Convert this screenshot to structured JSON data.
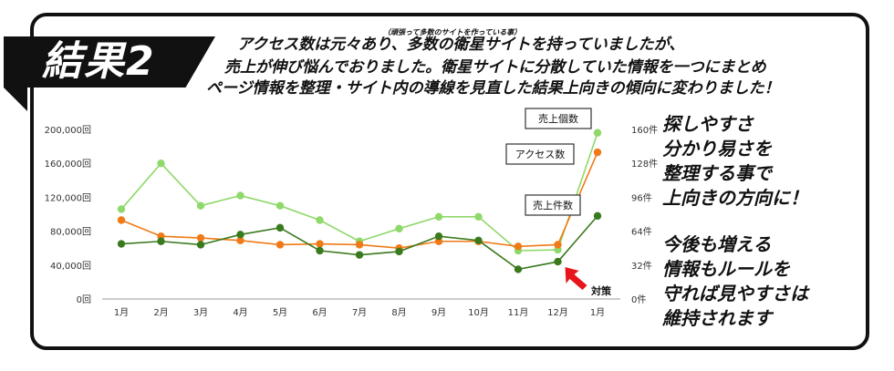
{
  "header": {
    "badge": "結果2",
    "note": "（頑張って多数のサイトを作っている事）",
    "line1": "アクセス数は元々あり、多数の衛星サイトを持っていましたが、",
    "line2": "売上が伸び悩んでおりました。衛星サイトに分散していた情報を一つにまとめ",
    "line3": "ページ情報を整理・サイト内の導線を見直した結果上向きの傾向に変わりました！"
  },
  "side_text": {
    "block1": [
      "探しやすさ",
      "分かり易さを",
      "整理する事で",
      "上向きの方向に！"
    ],
    "block2": [
      "今後も増える",
      "情報もルールを",
      "守れば見やすさは",
      "維持されます"
    ]
  },
  "chart_data": {
    "type": "line",
    "categories": [
      "1月",
      "2月",
      "3月",
      "4月",
      "5月",
      "6月",
      "7月",
      "8月",
      "9月",
      "10月",
      "11月",
      "12月",
      "1月"
    ],
    "left_ticks": [
      "200,000回",
      "160,000回",
      "120,000回",
      "80,000回",
      "40,000回",
      "0回"
    ],
    "right_ticks": [
      "160件",
      "128件",
      "96件",
      "64件",
      "32件",
      "0件"
    ],
    "ylim_left": [
      0,
      200000
    ],
    "ylim_right": [
      0,
      160
    ],
    "series": [
      {
        "name": "売上個数",
        "axis": "left",
        "color": "#8fd86a",
        "values": [
          106000,
          160000,
          110000,
          122000,
          110000,
          93000,
          68000,
          83000,
          97000,
          97000,
          57000,
          58000,
          196000
        ]
      },
      {
        "name": "アクセス数",
        "axis": "left",
        "color": "#f07a18",
        "values": [
          93000,
          74000,
          72000,
          69000,
          64000,
          65000,
          64000,
          60000,
          68000,
          68000,
          62000,
          64000,
          173000
        ]
      },
      {
        "name": "売上件数",
        "axis": "left",
        "color": "#3a7a1e",
        "values": [
          65000,
          68000,
          64000,
          76000,
          84000,
          57000,
          52000,
          56000,
          74000,
          69000,
          35000,
          44000,
          98000
        ]
      }
    ],
    "annotation": "対策"
  }
}
